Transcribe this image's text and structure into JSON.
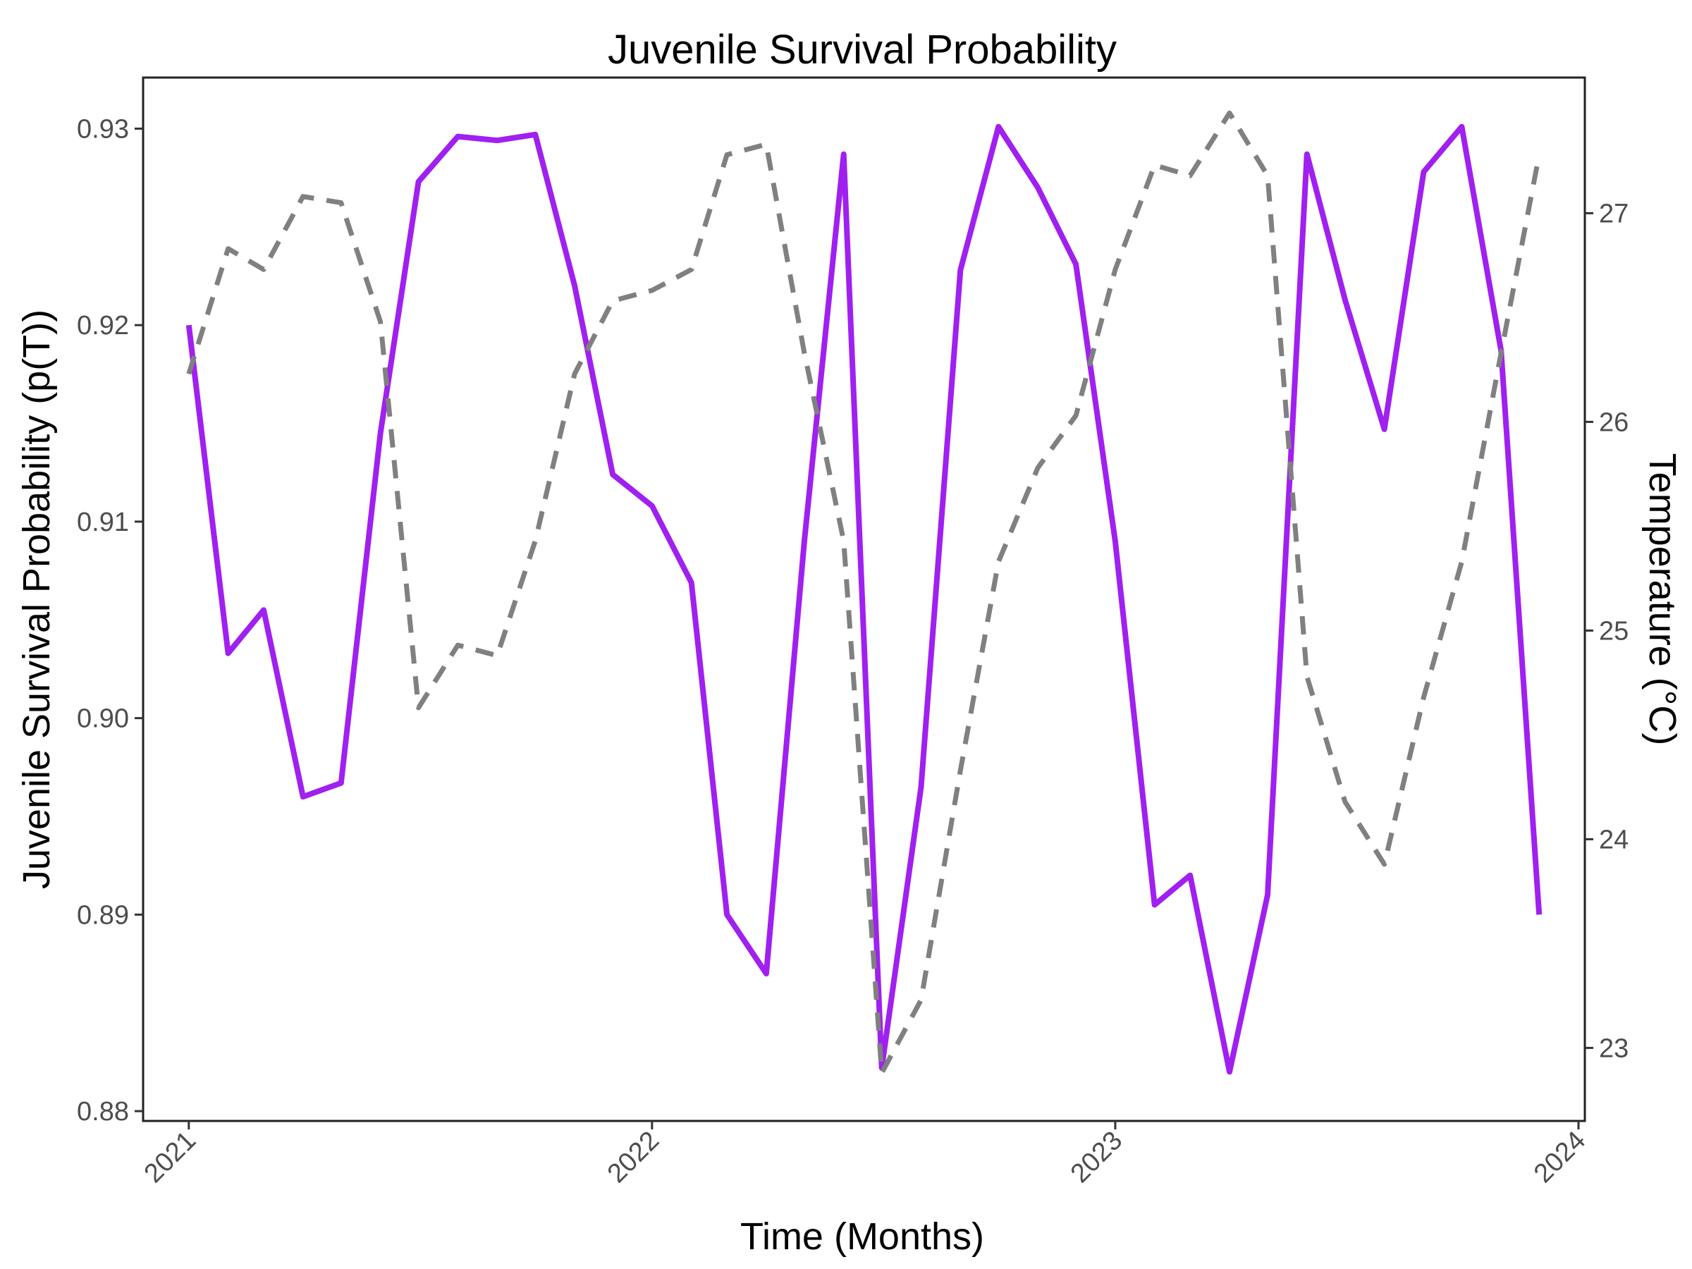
{
  "chart_data": {
    "type": "line",
    "title": "Juvenile Survival Probability",
    "xlabel": "Time (Months)",
    "ylabel": "Juvenile Survival Probability (p(T))",
    "ylabel_right": "Temperature (°C)",
    "xlim": [
      "2020-11-26",
      "2024-01-06"
    ],
    "ylim": [
      0.8795,
      0.9326
    ],
    "ylim_right": [
      22.65,
      27.65
    ],
    "x_ticks": [
      "2021",
      "2022",
      "2023",
      "2024"
    ],
    "x_tick_dates": [
      "2021-01-01",
      "2022-01-01",
      "2023-01-01",
      "2024-01-01"
    ],
    "y_ticks": [
      "0.88",
      "0.89",
      "0.90",
      "0.91",
      "0.92",
      "0.93"
    ],
    "y_ticks_right": [
      "23",
      "24",
      "25",
      "26",
      "27"
    ],
    "grid": false,
    "legend": "none",
    "x": [
      "2021-01",
      "2021-02",
      "2021-03",
      "2021-04",
      "2021-05",
      "2021-06",
      "2021-07",
      "2021-08",
      "2021-09",
      "2021-10",
      "2021-11",
      "2021-12",
      "2022-01",
      "2022-02",
      "2022-03",
      "2022-04",
      "2022-05",
      "2022-06",
      "2022-07",
      "2022-08",
      "2022-09",
      "2022-10",
      "2022-11",
      "2022-12",
      "2023-01",
      "2023-02",
      "2023-03",
      "2023-04",
      "2023-05",
      "2023-06",
      "2023-07",
      "2023-08",
      "2023-09",
      "2023-10",
      "2023-11",
      "2023-12"
    ],
    "series": [
      {
        "axis": "left",
        "color": "#a020f0",
        "style": "solid",
        "values": [
          0.92,
          0.9033,
          0.9055,
          0.896,
          0.8967,
          0.9145,
          0.9273,
          0.9296,
          0.9294,
          0.9297,
          0.922,
          0.9124,
          0.9108,
          0.9069,
          0.89,
          0.887,
          0.909,
          0.9287,
          0.8822,
          0.8965,
          0.9228,
          0.9301,
          0.927,
          0.9231,
          0.909,
          0.8905,
          0.892,
          0.882,
          0.891,
          0.9287,
          0.9213,
          0.9147,
          0.9278,
          0.9301,
          0.9187,
          0.89
        ]
      },
      {
        "axis": "right",
        "color": "#808080",
        "style": "dashed",
        "values": [
          26.23,
          26.83,
          26.73,
          27.08,
          27.05,
          26.48,
          24.63,
          24.93,
          24.88,
          25.43,
          26.23,
          26.58,
          26.63,
          26.73,
          27.28,
          27.33,
          26.33,
          25.43,
          22.88,
          23.23,
          24.33,
          25.33,
          25.78,
          26.03,
          26.73,
          27.23,
          27.18,
          27.48,
          27.18,
          24.78,
          24.18,
          23.88,
          24.68,
          25.33,
          26.33,
          27.28
        ]
      }
    ]
  }
}
